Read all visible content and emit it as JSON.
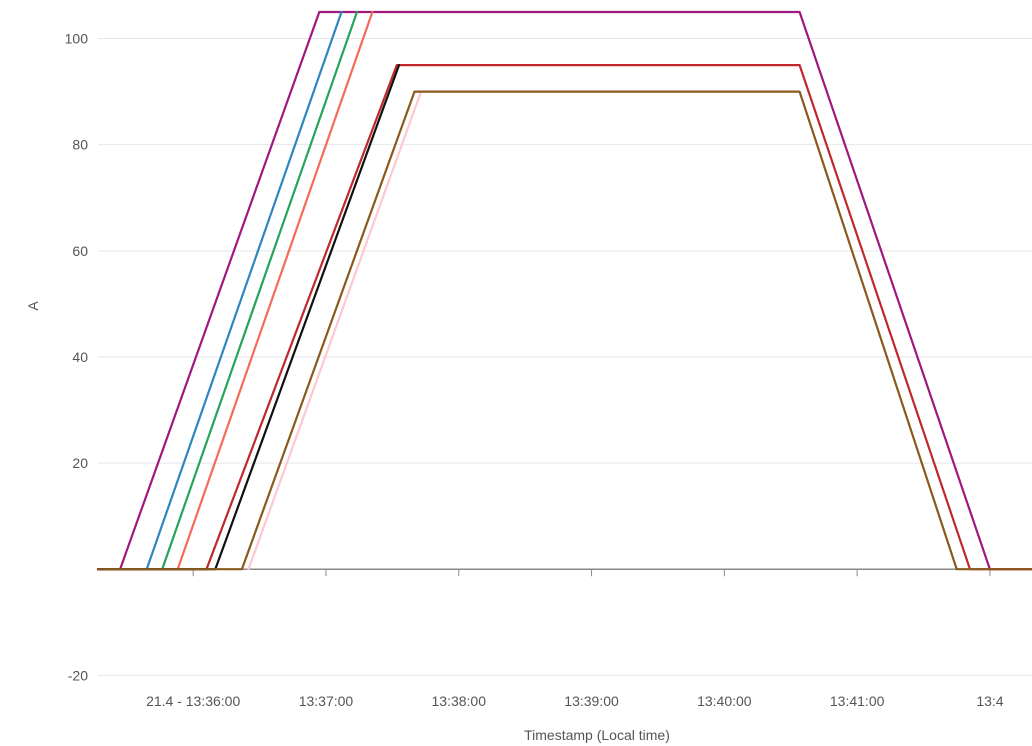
{
  "chart_data": {
    "type": "line",
    "title": "",
    "xlabel": "Timestamp (Local time)",
    "ylabel": "A",
    "x_tick_labels": [
      "21.4 - 13:36:00",
      "13:37:00",
      "13:38:00",
      "13:39:00",
      "13:40:00",
      "13:41:00",
      "13:4"
    ],
    "y_ticks": [
      -20,
      20,
      40,
      60,
      80,
      100
    ],
    "ylim": [
      -22,
      105
    ],
    "xlim": [
      "13:35:17",
      "13:42:19"
    ],
    "grid": true,
    "colors": {
      "grid": "#e6e6ee",
      "axis": "#888888",
      "text": "#555555"
    },
    "series": [
      {
        "color": "#a0187e",
        "points": [
          [
            "13:35:17",
            0
          ],
          [
            "13:35:27",
            0
          ],
          [
            "13:36:57",
            105
          ],
          [
            "13:40:34",
            105
          ],
          [
            "13:42:00",
            0
          ],
          [
            "13:42:19",
            0
          ]
        ]
      },
      {
        "color": "#2e86c1",
        "points": [
          [
            "13:35:17",
            0
          ],
          [
            "13:35:39",
            0
          ],
          [
            "13:37:07",
            105
          ]
        ]
      },
      {
        "color": "#27a35a",
        "points": [
          [
            "13:35:17",
            0
          ],
          [
            "13:35:46",
            0
          ],
          [
            "13:37:14",
            105
          ]
        ]
      },
      {
        "color": "#f26b5b",
        "points": [
          [
            "13:35:17",
            0
          ],
          [
            "13:35:53",
            0
          ],
          [
            "13:37:21",
            105
          ]
        ]
      },
      {
        "color": "#c0282d",
        "points": [
          [
            "13:35:17",
            0
          ],
          [
            "13:36:06",
            0
          ],
          [
            "13:37:32",
            95
          ],
          [
            "13:40:34",
            95
          ],
          [
            "13:41:51",
            0
          ],
          [
            "13:42:19",
            0
          ]
        ]
      },
      {
        "color": "#111111",
        "points": [
          [
            "13:35:17",
            0
          ],
          [
            "13:36:10",
            0
          ],
          [
            "13:37:33",
            95
          ]
        ]
      },
      {
        "color": "#ffc8d0",
        "points": [
          [
            "13:36:25",
            0
          ],
          [
            "13:37:43",
            90
          ]
        ]
      },
      {
        "color": "#8a5a1c",
        "points": [
          [
            "13:35:17",
            0
          ],
          [
            "13:36:22",
            0
          ],
          [
            "13:37:40",
            90
          ],
          [
            "13:40:34",
            90
          ],
          [
            "13:41:45",
            0
          ],
          [
            "13:42:19",
            0
          ]
        ]
      }
    ]
  }
}
